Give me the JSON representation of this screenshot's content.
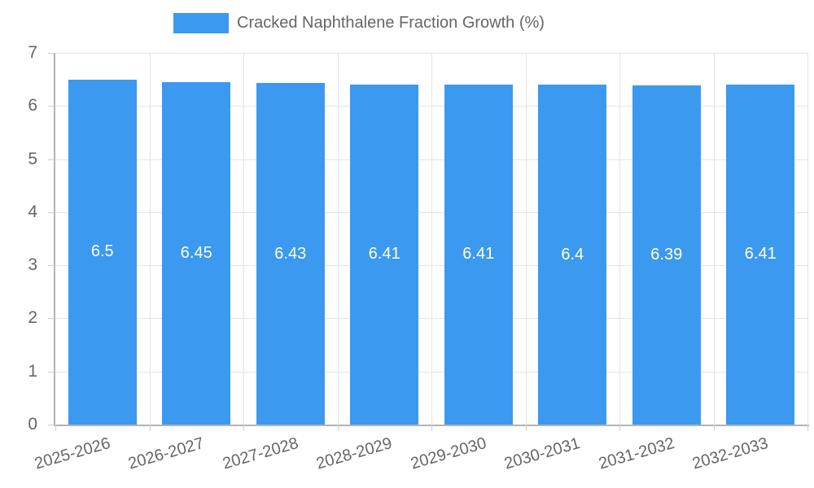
{
  "chart_data": {
    "type": "bar",
    "legend_label": "Cracked Naphthalene Fraction Growth (%)",
    "legend_position": "top",
    "categories": [
      "2025-2026",
      "2026-2027",
      "2027-2028",
      "2028-2029",
      "2029-2030",
      "2030-2031",
      "2031-2032",
      "2032-2033"
    ],
    "values": [
      6.5,
      6.45,
      6.43,
      6.41,
      6.41,
      6.4,
      6.39,
      6.41
    ],
    "value_labels": [
      "6.5",
      "6.45",
      "6.43",
      "6.41",
      "6.41",
      "6.4",
      "6.39",
      "6.41"
    ],
    "yticks": [
      0,
      1,
      2,
      3,
      4,
      5,
      6,
      7
    ],
    "ytick_labels": [
      "0",
      "1",
      "2",
      "3",
      "4",
      "5",
      "6",
      "7"
    ],
    "ylim": [
      0,
      7
    ],
    "xlabel": "",
    "ylabel": "",
    "grid": true,
    "colors": {
      "bar": "#3B99F0",
      "grid": "#E4E4E4",
      "axis": "#B3B3B3",
      "tick_text": "#666666",
      "value_label": "#FFFFFF",
      "background": "#FFFFFF"
    }
  }
}
